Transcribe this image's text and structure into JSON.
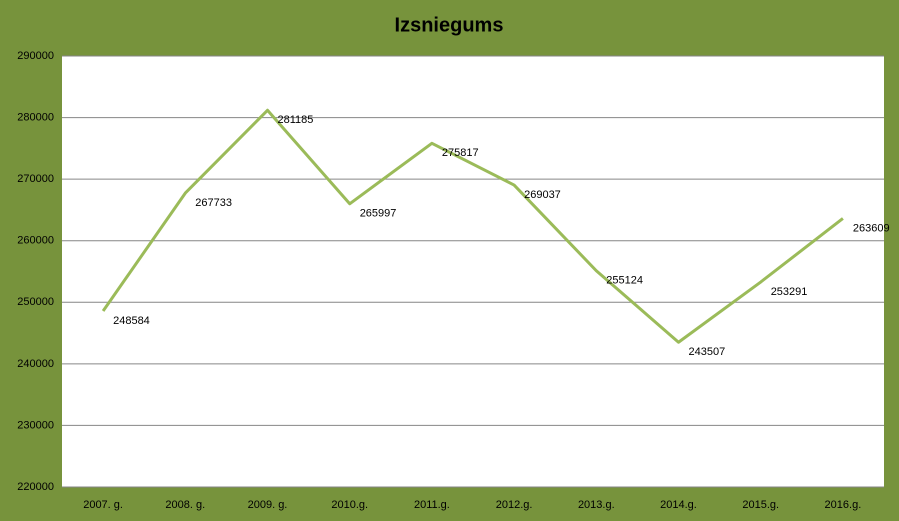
{
  "chart_data": {
    "type": "line",
    "title": "Izsniegums",
    "categories": [
      "2007. g.",
      "2008. g.",
      "2009. g.",
      "2010.g.",
      "2011.g.",
      "2012.g.",
      "2013.g.",
      "2014.g.",
      "2015.g.",
      "2016.g."
    ],
    "values": [
      248584,
      267733,
      281185,
      265997,
      275817,
      269037,
      255124,
      243507,
      253291,
      263609
    ],
    "color": "#9bbb59",
    "ylim": [
      220000,
      290000
    ],
    "yticks": [
      220000,
      230000,
      240000,
      250000,
      260000,
      270000,
      280000,
      290000
    ],
    "grid": true
  }
}
